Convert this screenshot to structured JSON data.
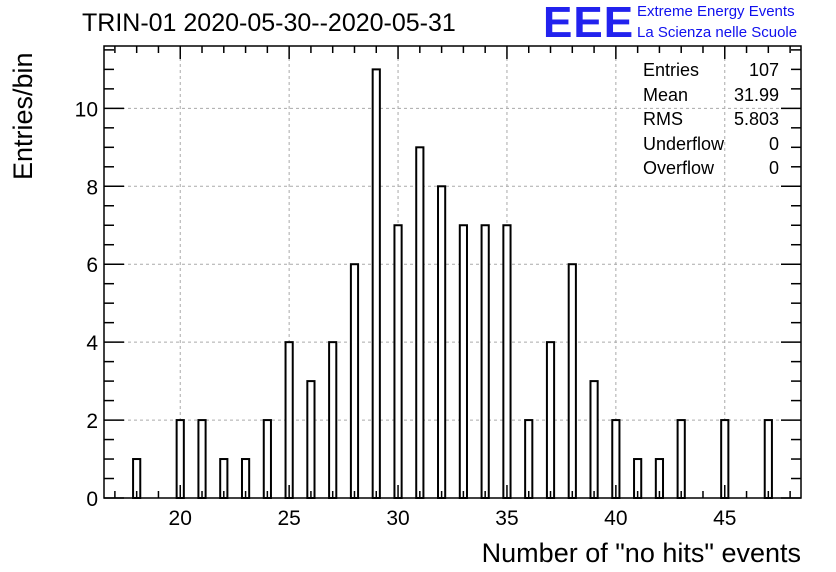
{
  "title": "TRIN-01 2020-05-30--2020-05-31",
  "logo": {
    "mark": "EEE",
    "line1": "Extreme Energy Events",
    "line2": "La Scienza nelle Scuole",
    "color": "#2222ee"
  },
  "stats": [
    {
      "label": "Entries",
      "value": "107"
    },
    {
      "label": "Mean",
      "value": "31.99"
    },
    {
      "label": "RMS",
      "value": "5.803"
    },
    {
      "label": "Underflow",
      "value": "0"
    },
    {
      "label": "Overflow",
      "value": "0"
    }
  ],
  "chart_data": {
    "type": "bar",
    "xlabel": "Number of \"no hits\" events",
    "ylabel": "Entries/bin",
    "xlim": [
      16.5,
      48.5
    ],
    "ylim": [
      0,
      11.6
    ],
    "xticks": [
      20,
      25,
      30,
      35,
      40,
      45
    ],
    "yticks": [
      0,
      2,
      4,
      6,
      8,
      10
    ],
    "grid": true,
    "bins": [
      {
        "x": 18,
        "count": 1
      },
      {
        "x": 20,
        "count": 2
      },
      {
        "x": 21,
        "count": 2
      },
      {
        "x": 22,
        "count": 1
      },
      {
        "x": 23,
        "count": 1
      },
      {
        "x": 24,
        "count": 2
      },
      {
        "x": 25,
        "count": 4
      },
      {
        "x": 26,
        "count": 3
      },
      {
        "x": 27,
        "count": 4
      },
      {
        "x": 28,
        "count": 6
      },
      {
        "x": 29,
        "count": 11
      },
      {
        "x": 30,
        "count": 7
      },
      {
        "x": 31,
        "count": 9
      },
      {
        "x": 32,
        "count": 8
      },
      {
        "x": 33,
        "count": 7
      },
      {
        "x": 34,
        "count": 7
      },
      {
        "x": 35,
        "count": 7
      },
      {
        "x": 36,
        "count": 2
      },
      {
        "x": 37,
        "count": 4
      },
      {
        "x": 38,
        "count": 6
      },
      {
        "x": 39,
        "count": 3
      },
      {
        "x": 40,
        "count": 2
      },
      {
        "x": 41,
        "count": 1
      },
      {
        "x": 42,
        "count": 1
      },
      {
        "x": 43,
        "count": 2
      },
      {
        "x": 45,
        "count": 2
      },
      {
        "x": 47,
        "count": 2
      }
    ]
  }
}
